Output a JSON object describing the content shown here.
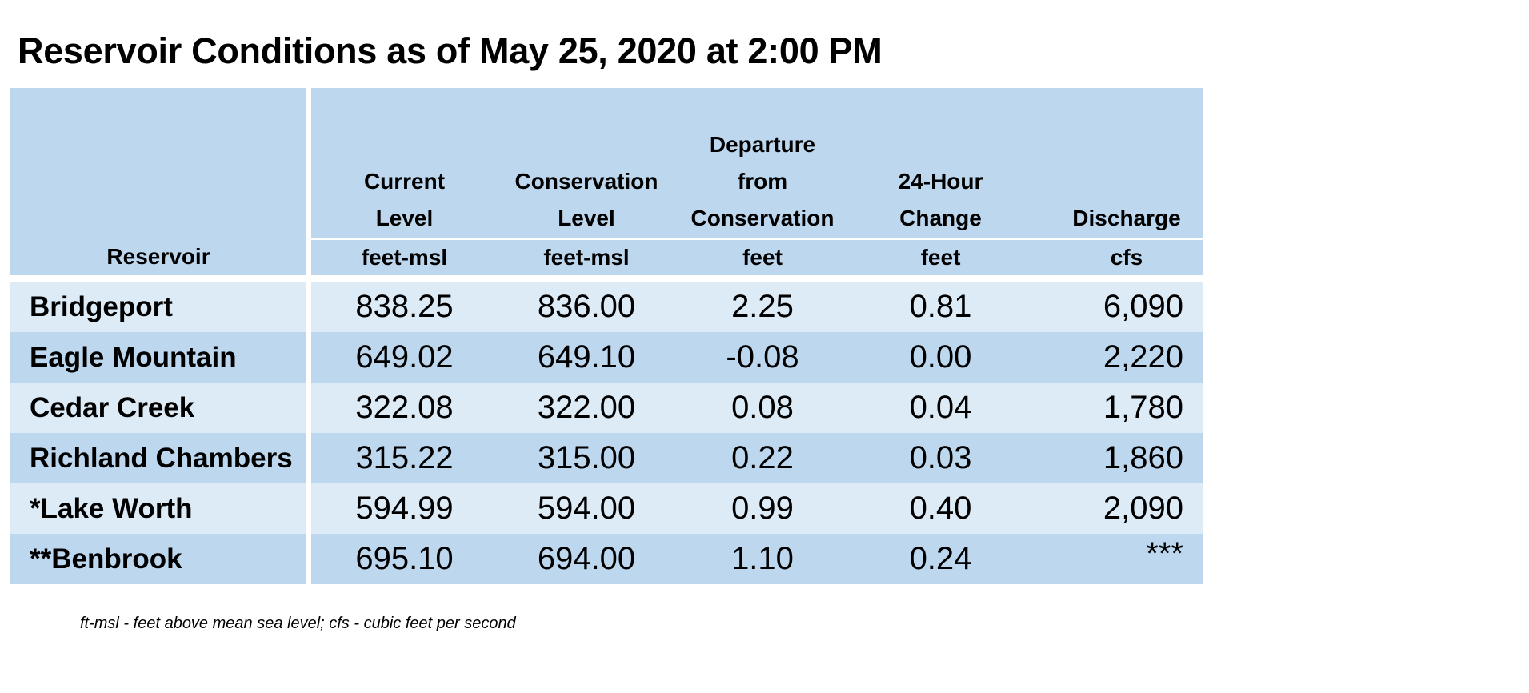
{
  "title": "Reservoir Conditions as of May 25, 2020 at 2:00 PM",
  "table": {
    "headers": [
      {
        "label": "Reservoir",
        "unit": ""
      },
      {
        "label": "Current\nLevel",
        "unit": "feet-msl"
      },
      {
        "label": "Conservation\nLevel",
        "unit": "feet-msl"
      },
      {
        "label": "Departure\nfrom\nConservation",
        "unit": "feet"
      },
      {
        "label": "24-Hour\nChange",
        "unit": "feet"
      },
      {
        "label": "Discharge",
        "unit": "cfs"
      }
    ],
    "rows": [
      {
        "name": "Bridgeport",
        "current": "838.25",
        "conservation": "836.00",
        "departure": "2.25",
        "change": "0.81",
        "discharge": "6,090"
      },
      {
        "name": "Eagle Mountain",
        "current": "649.02",
        "conservation": "649.10",
        "departure": "-0.08",
        "change": "0.00",
        "discharge": "2,220"
      },
      {
        "name": "Cedar Creek",
        "current": "322.08",
        "conservation": "322.00",
        "departure": "0.08",
        "change": "0.04",
        "discharge": "1,780"
      },
      {
        "name": "Richland Chambers",
        "current": "315.22",
        "conservation": "315.00",
        "departure": "0.22",
        "change": "0.03",
        "discharge": "1,860"
      },
      {
        "name": "*Lake Worth",
        "current": "594.99",
        "conservation": "594.00",
        "departure": "0.99",
        "change": "0.40",
        "discharge": "2,090"
      },
      {
        "name": "**Benbrook",
        "current": "695.10",
        "conservation": "694.00",
        "departure": "1.10",
        "change": "0.24",
        "discharge": "***"
      }
    ]
  },
  "footnote": "ft-msl - feet above mean sea level; cfs - cubic feet per second",
  "colors": {
    "header": "#bdd7ee",
    "row_light": "#ddebf7",
    "row_dark": "#bdd7ee"
  }
}
